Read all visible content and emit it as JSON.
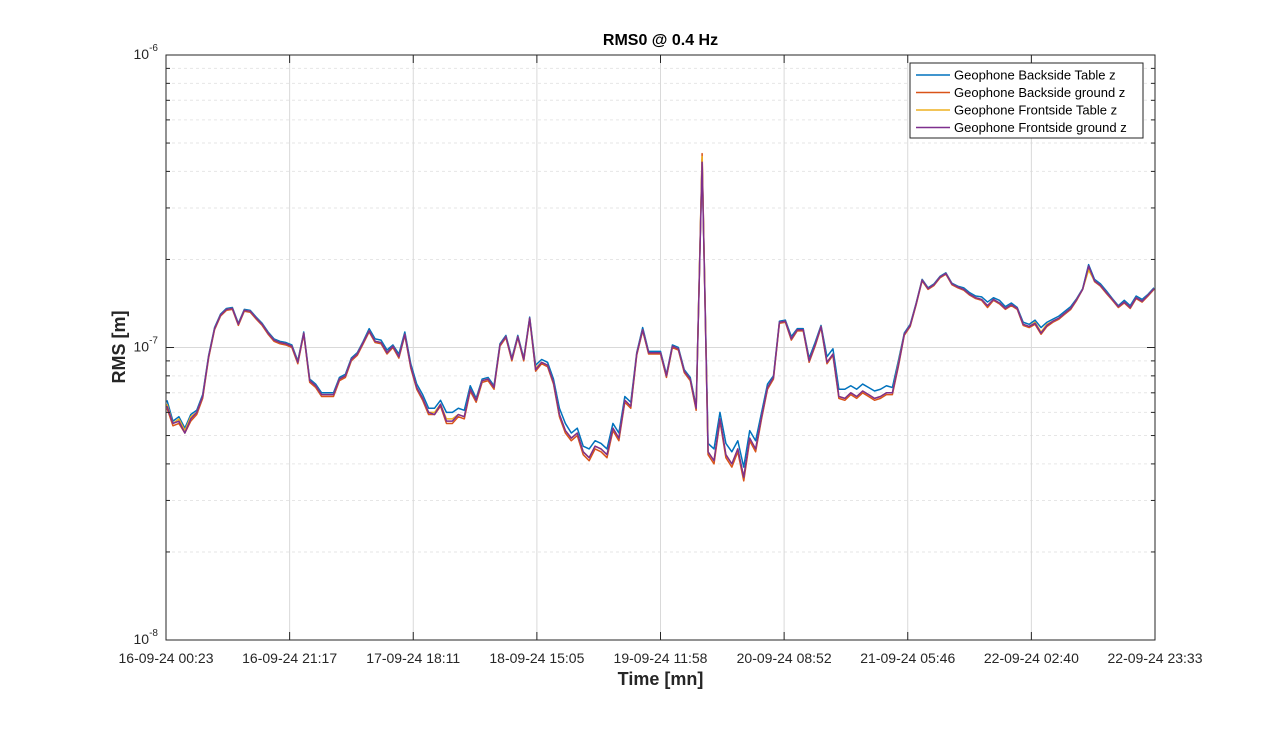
{
  "chart_data": {
    "type": "line",
    "title": "RMS0 @ 0.4 Hz",
    "xlabel": "Time [mn]",
    "ylabel": "RMS [m]",
    "yscale": "log",
    "ylim": [
      1e-08,
      1e-06
    ],
    "xlim": [
      "16-09-24 00:23",
      "22-09-24 23:33"
    ],
    "grid": true,
    "legend_position": "top-right",
    "x_tick_labels": [
      "16-09-24 00:23",
      "16-09-24 21:17",
      "17-09-24 18:11",
      "18-09-24 15:05",
      "19-09-24 11:58",
      "20-09-24 08:52",
      "21-09-24 05:46",
      "22-09-24 02:40",
      "22-09-24 23:33"
    ],
    "y_ticks": [
      {
        "base": "10",
        "exp": "-6",
        "value": 1e-06
      },
      {
        "base": "10",
        "exp": "-7",
        "value": 1e-07
      },
      {
        "base": "10",
        "exp": "-8",
        "value": 1e-08
      }
    ],
    "series": [
      {
        "name": "Geophone Backside Table z",
        "color": "#0072BD",
        "values": [
          6.6e-08,
          5.6e-08,
          5.8e-08,
          5.3e-08,
          5.9e-08,
          6.1e-08,
          6.9e-08,
          9.4e-08,
          1.17e-07,
          1.3e-07,
          1.36e-07,
          1.37e-07,
          1.21e-07,
          1.35e-07,
          1.34e-07,
          1.27e-07,
          1.21e-07,
          1.13e-07,
          1.07e-07,
          1.05e-07,
          1.04e-07,
          1.02e-07,
          9e-08,
          1.13e-07,
          7.8e-08,
          7.5e-08,
          7e-08,
          7e-08,
          7e-08,
          7.9e-08,
          8.1e-08,
          9.2e-08,
          9.6e-08,
          1.05e-07,
          1.16e-07,
          1.07e-07,
          1.06e-07,
          9.8e-08,
          1.02e-07,
          9.5e-08,
          1.13e-07,
          8.8e-08,
          7.5e-08,
          6.9e-08,
          6.2e-08,
          6.2e-08,
          6.6e-08,
          6e-08,
          6e-08,
          6.2e-08,
          6.1e-08,
          7.4e-08,
          6.7e-08,
          7.8e-08,
          7.9e-08,
          7.4e-08,
          1.03e-07,
          1.1e-07,
          9.2e-08,
          1.1e-07,
          9.2e-08,
          1.27e-07,
          8.7e-08,
          9.1e-08,
          8.9e-08,
          7.8e-08,
          6.2e-08,
          5.5e-08,
          5.1e-08,
          5.3e-08,
          4.6e-08,
          4.5e-08,
          4.8e-08,
          4.7e-08,
          4.5e-08,
          5.5e-08,
          5.1e-08,
          6.8e-08,
          6.5e-08,
          9.6e-08,
          1.17e-07,
          9.7e-08,
          9.7e-08,
          9.7e-08,
          8.1e-08,
          1.02e-07,
          1e-07,
          8.4e-08,
          7.9e-08,
          6.3e-08,
          4.4e-07,
          4.7e-08,
          4.5e-08,
          6e-08,
          4.7e-08,
          4.4e-08,
          4.8e-08,
          3.9e-08,
          5.2e-08,
          4.8e-08,
          6e-08,
          7.5e-08,
          8e-08,
          1.23e-07,
          1.24e-07,
          1.09e-07,
          1.16e-07,
          1.16e-07,
          9.2e-08,
          1.04e-07,
          1.19e-07,
          9.3e-08,
          9.9e-08,
          7.2e-08,
          7.2e-08,
          7.4e-08,
          7.2e-08,
          7.5e-08,
          7.3e-08,
          7.1e-08,
          7.2e-08,
          7.4e-08,
          7.3e-08,
          9e-08,
          1.12e-07,
          1.2e-07,
          1.42e-07,
          1.71e-07,
          1.6e-07,
          1.65e-07,
          1.75e-07,
          1.8e-07,
          1.66e-07,
          1.62e-07,
          1.6e-07,
          1.54e-07,
          1.5e-07,
          1.49e-07,
          1.43e-07,
          1.48e-07,
          1.45e-07,
          1.38e-07,
          1.42e-07,
          1.37e-07,
          1.22e-07,
          1.2e-07,
          1.24e-07,
          1.17e-07,
          1.22e-07,
          1.25e-07,
          1.28e-07,
          1.33e-07,
          1.38e-07,
          1.47e-07,
          1.59e-07,
          1.92e-07,
          1.71e-07,
          1.65e-07,
          1.56e-07,
          1.47e-07,
          1.39e-07,
          1.45e-07,
          1.39e-07,
          1.5e-07,
          1.46e-07,
          1.52e-07,
          1.6e-07
        ]
      },
      {
        "name": "Geophone Backside ground z",
        "color": "#D95319",
        "values": [
          6.2e-08,
          5.4e-08,
          5.5e-08,
          5.1e-08,
          5.6e-08,
          5.9e-08,
          6.7e-08,
          9.2e-08,
          1.15e-07,
          1.28e-07,
          1.34e-07,
          1.35e-07,
          1.19e-07,
          1.33e-07,
          1.32e-07,
          1.25e-07,
          1.19e-07,
          1.11e-07,
          1.05e-07,
          1.03e-07,
          1.02e-07,
          1e-07,
          8.8e-08,
          1.11e-07,
          7.6e-08,
          7.3e-08,
          6.8e-08,
          6.8e-08,
          6.8e-08,
          7.7e-08,
          7.9e-08,
          9e-08,
          9.4e-08,
          1.03e-07,
          1.13e-07,
          1.04e-07,
          1.03e-07,
          9.5e-08,
          1e-07,
          9.2e-08,
          1.1e-07,
          8.5e-08,
          7.2e-08,
          6.6e-08,
          5.9e-08,
          5.9e-08,
          6.3e-08,
          5.5e-08,
          5.5e-08,
          5.8e-08,
          5.7e-08,
          7.1e-08,
          6.5e-08,
          7.6e-08,
          7.7e-08,
          7.2e-08,
          1.01e-07,
          1.08e-07,
          9e-08,
          1.08e-07,
          9e-08,
          1.25e-07,
          8.3e-08,
          8.8e-08,
          8.6e-08,
          7.5e-08,
          5.8e-08,
          5.1e-08,
          4.8e-08,
          5e-08,
          4.3e-08,
          4.1e-08,
          4.5e-08,
          4.4e-08,
          4.2e-08,
          5.2e-08,
          4.8e-08,
          6.5e-08,
          6.2e-08,
          9.4e-08,
          1.14e-07,
          9.5e-08,
          9.5e-08,
          9.5e-08,
          7.9e-08,
          1e-07,
          9.8e-08,
          8.2e-08,
          7.7e-08,
          6.1e-08,
          4.6e-07,
          4.3e-08,
          4e-08,
          5.6e-08,
          4.2e-08,
          3.9e-08,
          4.4e-08,
          3.5e-08,
          4.8e-08,
          4.4e-08,
          5.7e-08,
          7.2e-08,
          7.8e-08,
          1.21e-07,
          1.22e-07,
          1.06e-07,
          1.14e-07,
          1.14e-07,
          8.9e-08,
          1.01e-07,
          1.17e-07,
          8.8e-08,
          9.4e-08,
          6.7e-08,
          6.6e-08,
          6.9e-08,
          6.7e-08,
          7e-08,
          6.8e-08,
          6.6e-08,
          6.7e-08,
          6.9e-08,
          6.9e-08,
          8.6e-08,
          1.1e-07,
          1.18e-07,
          1.4e-07,
          1.69e-07,
          1.58e-07,
          1.63e-07,
          1.73e-07,
          1.78e-07,
          1.64e-07,
          1.6e-07,
          1.57e-07,
          1.51e-07,
          1.47e-07,
          1.45e-07,
          1.37e-07,
          1.45e-07,
          1.41e-07,
          1.35e-07,
          1.39e-07,
          1.35e-07,
          1.19e-07,
          1.17e-07,
          1.2e-07,
          1.11e-07,
          1.18e-07,
          1.22e-07,
          1.25e-07,
          1.3e-07,
          1.35e-07,
          1.45e-07,
          1.58e-07,
          1.88e-07,
          1.68e-07,
          1.62e-07,
          1.53e-07,
          1.45e-07,
          1.37e-07,
          1.42e-07,
          1.36e-07,
          1.47e-07,
          1.43e-07,
          1.5e-07,
          1.58e-07
        ]
      },
      {
        "name": "Geophone Frontside Table z",
        "color": "#EDB120",
        "values": [
          6.4e-08,
          5.5e-08,
          5.7e-08,
          5.2e-08,
          5.8e-08,
          6e-08,
          6.8e-08,
          9.3e-08,
          1.16e-07,
          1.29e-07,
          1.35e-07,
          1.36e-07,
          1.2e-07,
          1.34e-07,
          1.33e-07,
          1.26e-07,
          1.2e-07,
          1.12e-07,
          1.06e-07,
          1.04e-07,
          1.03e-07,
          1.01e-07,
          8.9e-08,
          1.12e-07,
          7.7e-08,
          7.4e-08,
          6.9e-08,
          6.9e-08,
          6.9e-08,
          7.8e-08,
          8e-08,
          9.1e-08,
          9.5e-08,
          1.04e-07,
          1.14e-07,
          1.05e-07,
          1.04e-07,
          9.6e-08,
          1.01e-07,
          9.3e-08,
          1.11e-07,
          8.6e-08,
          7.3e-08,
          6.7e-08,
          6e-08,
          6e-08,
          6.4e-08,
          5.7e-08,
          5.7e-08,
          5.9e-08,
          5.8e-08,
          7.2e-08,
          6.6e-08,
          7.7e-08,
          7.8e-08,
          7.3e-08,
          1.02e-07,
          1.09e-07,
          9.1e-08,
          1.09e-07,
          9.1e-08,
          1.26e-07,
          8.5e-08,
          8.9e-08,
          8.7e-08,
          7.6e-08,
          5.9e-08,
          5.2e-08,
          4.9e-08,
          5.1e-08,
          4.4e-08,
          4.2e-08,
          4.6e-08,
          4.5e-08,
          4.3e-08,
          5.3e-08,
          4.9e-08,
          6.6e-08,
          6.3e-08,
          9.5e-08,
          1.15e-07,
          9.6e-08,
          9.6e-08,
          9.6e-08,
          8e-08,
          1.01e-07,
          9.9e-08,
          8.3e-08,
          7.8e-08,
          6.2e-08,
          4.5e-07,
          4.4e-08,
          4.1e-08,
          5.7e-08,
          4.3e-08,
          4e-08,
          4.5e-08,
          3.6e-08,
          4.9e-08,
          4.5e-08,
          5.8e-08,
          7.3e-08,
          7.9e-08,
          1.22e-07,
          1.23e-07,
          1.07e-07,
          1.15e-07,
          1.15e-07,
          9e-08,
          1.02e-07,
          1.18e-07,
          8.9e-08,
          9.5e-08,
          6.8e-08,
          6.7e-08,
          7e-08,
          6.8e-08,
          7.1e-08,
          6.9e-08,
          6.7e-08,
          6.8e-08,
          7e-08,
          7e-08,
          8.8e-08,
          1.11e-07,
          1.19e-07,
          1.41e-07,
          1.7e-07,
          1.59e-07,
          1.64e-07,
          1.74e-07,
          1.79e-07,
          1.65e-07,
          1.61e-07,
          1.58e-07,
          1.52e-07,
          1.48e-07,
          1.46e-07,
          1.39e-07,
          1.46e-07,
          1.42e-07,
          1.36e-07,
          1.4e-07,
          1.36e-07,
          1.2e-07,
          1.18e-07,
          1.22e-07,
          1.13e-07,
          1.2e-07,
          1.23e-07,
          1.26e-07,
          1.31e-07,
          1.36e-07,
          1.46e-07,
          1.58e-07,
          1.84e-07,
          1.69e-07,
          1.63e-07,
          1.54e-07,
          1.46e-07,
          1.38e-07,
          1.43e-07,
          1.37e-07,
          1.48e-07,
          1.44e-07,
          1.51e-07,
          1.59e-07
        ]
      },
      {
        "name": "Geophone Frontside ground z",
        "color": "#7E2F8E",
        "values": [
          6.3e-08,
          5.5e-08,
          5.6e-08,
          5.1e-08,
          5.7e-08,
          6e-08,
          6.8e-08,
          9.3e-08,
          1.16e-07,
          1.29e-07,
          1.35e-07,
          1.36e-07,
          1.2e-07,
          1.34e-07,
          1.33e-07,
          1.26e-07,
          1.2e-07,
          1.12e-07,
          1.06e-07,
          1.04e-07,
          1.03e-07,
          1.01e-07,
          8.9e-08,
          1.12e-07,
          7.7e-08,
          7.4e-08,
          6.9e-08,
          6.9e-08,
          6.9e-08,
          7.8e-08,
          8e-08,
          9.1e-08,
          9.5e-08,
          1.04e-07,
          1.14e-07,
          1.05e-07,
          1.04e-07,
          9.6e-08,
          1.01e-07,
          9.3e-08,
          1.11e-07,
          8.6e-08,
          7.3e-08,
          6.7e-08,
          6e-08,
          5.9e-08,
          6.4e-08,
          5.6e-08,
          5.6e-08,
          5.9e-08,
          5.8e-08,
          7.2e-08,
          6.6e-08,
          7.7e-08,
          7.8e-08,
          7.3e-08,
          1.02e-07,
          1.09e-07,
          9.1e-08,
          1.09e-07,
          9.1e-08,
          1.26e-07,
          8.4e-08,
          8.9e-08,
          8.7e-08,
          7.6e-08,
          5.9e-08,
          5.2e-08,
          4.9e-08,
          5.1e-08,
          4.4e-08,
          4.2e-08,
          4.6e-08,
          4.5e-08,
          4.3e-08,
          5.3e-08,
          4.9e-08,
          6.6e-08,
          6.3e-08,
          9.5e-08,
          1.15e-07,
          9.6e-08,
          9.6e-08,
          9.6e-08,
          8e-08,
          1.01e-07,
          9.9e-08,
          8.3e-08,
          7.8e-08,
          6.2e-08,
          4.3e-07,
          4.4e-08,
          4.1e-08,
          5.7e-08,
          4.3e-08,
          4e-08,
          4.5e-08,
          3.6e-08,
          4.9e-08,
          4.5e-08,
          5.8e-08,
          7.3e-08,
          7.9e-08,
          1.22e-07,
          1.23e-07,
          1.07e-07,
          1.15e-07,
          1.15e-07,
          9e-08,
          1.02e-07,
          1.18e-07,
          8.9e-08,
          9.5e-08,
          6.8e-08,
          6.7e-08,
          7e-08,
          6.8e-08,
          7.1e-08,
          6.9e-08,
          6.7e-08,
          6.8e-08,
          7e-08,
          7e-08,
          8.7e-08,
          1.11e-07,
          1.19e-07,
          1.41e-07,
          1.7e-07,
          1.59e-07,
          1.64e-07,
          1.74e-07,
          1.79e-07,
          1.65e-07,
          1.61e-07,
          1.58e-07,
          1.52e-07,
          1.48e-07,
          1.46e-07,
          1.39e-07,
          1.46e-07,
          1.42e-07,
          1.36e-07,
          1.4e-07,
          1.36e-07,
          1.2e-07,
          1.18e-07,
          1.21e-07,
          1.12e-07,
          1.19e-07,
          1.23e-07,
          1.26e-07,
          1.31e-07,
          1.36e-07,
          1.46e-07,
          1.58e-07,
          1.9e-07,
          1.69e-07,
          1.63e-07,
          1.54e-07,
          1.46e-07,
          1.38e-07,
          1.43e-07,
          1.37e-07,
          1.48e-07,
          1.44e-07,
          1.51e-07,
          1.59e-07
        ]
      }
    ]
  }
}
